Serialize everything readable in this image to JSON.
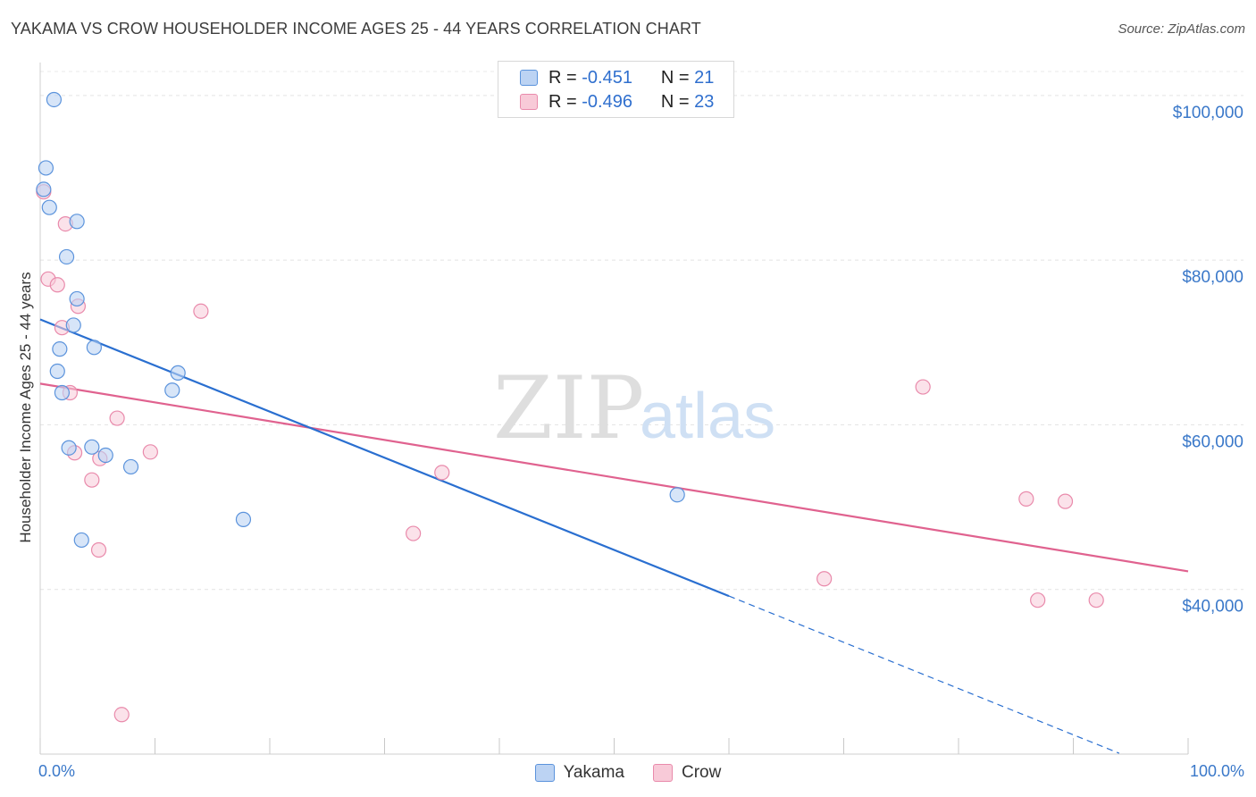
{
  "title": "YAKAMA VS CROW HOUSEHOLDER INCOME AGES 25 - 44 YEARS CORRELATION CHART",
  "source": "Source: ZipAtlas.com",
  "watermark": {
    "zip": "ZIP",
    "atlas": "atlas"
  },
  "colors": {
    "yakama_fill": "#bcd3f3",
    "yakama_stroke": "#5b93dc",
    "yakama_line": "#2a6fd0",
    "crow_fill": "#f8cad8",
    "crow_stroke": "#e98aab",
    "crow_line": "#e0628f",
    "tick_text": "#3a78c9"
  },
  "legend": {
    "rows": [
      {
        "r_label": "R =",
        "r_value": "-0.451",
        "n_label": "N =",
        "n_value": "21"
      },
      {
        "r_label": "R =",
        "r_value": "-0.496",
        "n_label": "N =",
        "n_value": "23"
      }
    ]
  },
  "bottom_legend": {
    "yakama": "Yakama",
    "crow": "Crow"
  },
  "chart_data": {
    "type": "scatter",
    "title": "YAKAMA VS CROW HOUSEHOLDER INCOME AGES 25 - 44 YEARS CORRELATION CHART",
    "xlabel": "",
    "ylabel": "Householder Income Ages 25 - 44 years",
    "xlim": [
      0,
      100
    ],
    "ylim": [
      20000,
      104000
    ],
    "x_tick_labels": [
      "0.0%",
      "100.0%"
    ],
    "x_ticks": [
      0,
      10,
      20,
      30,
      40,
      50,
      60,
      70,
      80,
      90,
      100
    ],
    "y_ticks": [
      40000,
      60000,
      80000,
      100000
    ],
    "y_tick_labels": [
      "$40,000",
      "$60,000",
      "$80,000",
      "$100,000"
    ],
    "series": [
      {
        "name": "Yakama",
        "points": [
          {
            "x": 1.2,
            "y": 99500
          },
          {
            "x": 0.5,
            "y": 91200
          },
          {
            "x": 0.3,
            "y": 88600
          },
          {
            "x": 0.8,
            "y": 86400
          },
          {
            "x": 3.2,
            "y": 84700
          },
          {
            "x": 2.3,
            "y": 80400
          },
          {
            "x": 3.2,
            "y": 75300
          },
          {
            "x": 2.9,
            "y": 72100
          },
          {
            "x": 1.7,
            "y": 69200
          },
          {
            "x": 4.7,
            "y": 69400
          },
          {
            "x": 1.5,
            "y": 66500
          },
          {
            "x": 12.0,
            "y": 66300
          },
          {
            "x": 1.9,
            "y": 63900
          },
          {
            "x": 11.5,
            "y": 64200
          },
          {
            "x": 2.5,
            "y": 57200
          },
          {
            "x": 4.5,
            "y": 57300
          },
          {
            "x": 5.7,
            "y": 56300
          },
          {
            "x": 7.9,
            "y": 54900
          },
          {
            "x": 17.7,
            "y": 48500
          },
          {
            "x": 55.5,
            "y": 51500
          },
          {
            "x": 3.6,
            "y": 46000
          }
        ],
        "trend": {
          "x0": 0,
          "y0": 72800,
          "x1": 60,
          "y1": 39200,
          "dash_to_x": 94,
          "dash_to_y": 20100
        }
      },
      {
        "name": "Crow",
        "points": [
          {
            "x": 0.3,
            "y": 88300
          },
          {
            "x": 2.2,
            "y": 84400
          },
          {
            "x": 0.7,
            "y": 77700
          },
          {
            "x": 1.5,
            "y": 77000
          },
          {
            "x": 3.3,
            "y": 74400
          },
          {
            "x": 14.0,
            "y": 73800
          },
          {
            "x": 1.9,
            "y": 71800
          },
          {
            "x": 2.6,
            "y": 63900
          },
          {
            "x": 6.7,
            "y": 60800
          },
          {
            "x": 9.6,
            "y": 56700
          },
          {
            "x": 3.0,
            "y": 56600
          },
          {
            "x": 5.2,
            "y": 55900
          },
          {
            "x": 4.5,
            "y": 53300
          },
          {
            "x": 35.0,
            "y": 54200
          },
          {
            "x": 76.9,
            "y": 64600
          },
          {
            "x": 85.9,
            "y": 51000
          },
          {
            "x": 89.3,
            "y": 50700
          },
          {
            "x": 32.5,
            "y": 46800
          },
          {
            "x": 5.1,
            "y": 44800
          },
          {
            "x": 68.3,
            "y": 41300
          },
          {
            "x": 86.9,
            "y": 38700
          },
          {
            "x": 92.0,
            "y": 38700
          },
          {
            "x": 7.1,
            "y": 24800
          }
        ],
        "trend": {
          "x0": 0,
          "y0": 65000,
          "x1": 100,
          "y1": 42200
        }
      }
    ]
  }
}
